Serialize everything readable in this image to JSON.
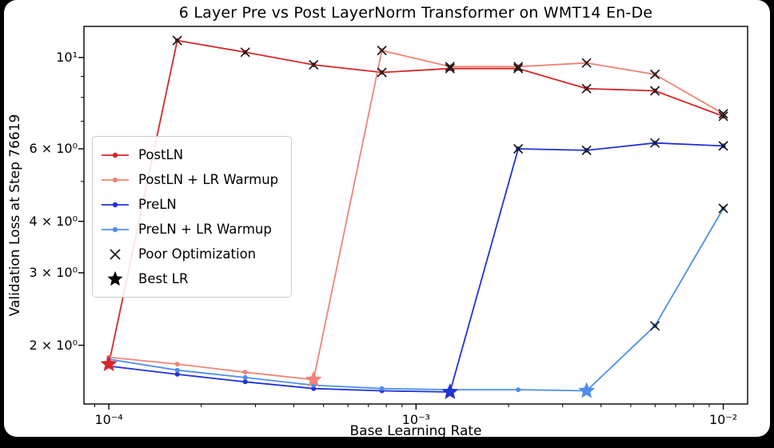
{
  "frame": {
    "background_color": "#000000",
    "card_color": "#ffffff"
  },
  "chart_data": {
    "type": "line",
    "title": "6 Layer Pre vs Post LayerNorm Transformer on WMT14 En-De",
    "xlabel": "Base Learning Rate",
    "ylabel": "Validation Loss at Step 76619",
    "x_scale": "log",
    "y_scale": "log",
    "grid": false,
    "legend_position": "center-left",
    "xlim": [
      8.3e-05,
      0.012
    ],
    "ylim": [
      1.44,
      11.9
    ],
    "x": [
      0.0001,
      0.000167,
      0.000278,
      0.000464,
      0.000774,
      0.00129,
      0.00215,
      0.00359,
      0.00599,
      0.01
    ],
    "x_ticks": [
      {
        "value": 0.0001,
        "label": "10⁻⁴"
      },
      {
        "value": 0.001,
        "label": "10⁻³"
      },
      {
        "value": 0.01,
        "label": "10⁻²"
      }
    ],
    "y_ticks": [
      {
        "value": 10,
        "label": "10¹"
      },
      {
        "value": 6,
        "label": "6 × 10⁰"
      },
      {
        "value": 4,
        "label": "4 × 10⁰"
      },
      {
        "value": 3,
        "label": "3 × 10⁰"
      },
      {
        "value": 2,
        "label": "2 × 10⁰"
      }
    ],
    "y_minor_ticks": [
      5,
      7,
      8,
      9
    ],
    "series": [
      {
        "name": "PostLN",
        "color": "#d62728",
        "values": [
          1.8,
          11.0,
          10.3,
          9.6,
          9.2,
          9.4,
          9.4,
          8.4,
          8.3,
          7.2
        ],
        "poor_optimization_idx": [
          1,
          2,
          3,
          4,
          5,
          6,
          7,
          8,
          9
        ],
        "best_lr_idx": 0
      },
      {
        "name": "PostLN + LR Warmup",
        "color": "#ef8476",
        "values": [
          1.87,
          1.8,
          1.72,
          1.65,
          10.4,
          9.5,
          9.5,
          9.7,
          9.1,
          7.3
        ],
        "poor_optimization_idx": [
          4,
          5,
          6,
          7,
          8,
          9
        ],
        "best_lr_idx": 3
      },
      {
        "name": "PreLN",
        "color": "#2132d6",
        "values": [
          1.78,
          1.7,
          1.63,
          1.57,
          1.55,
          1.54,
          6.0,
          5.95,
          6.2,
          6.1
        ],
        "poor_optimization_idx": [
          6,
          7,
          8,
          9
        ],
        "best_lr_idx": 5
      },
      {
        "name": "PreLN + LR Warmup",
        "color": "#4d8fea",
        "values": [
          1.85,
          1.74,
          1.67,
          1.6,
          1.57,
          1.56,
          1.56,
          1.55,
          2.23,
          4.3
        ],
        "poor_optimization_idx": [
          8,
          9
        ],
        "best_lr_idx": 7
      }
    ],
    "marker_legend": [
      {
        "name": "Poor Optimization",
        "marker": "x",
        "color": "#1a1a1a"
      },
      {
        "name": "Best LR",
        "marker": "star",
        "color": "#000000"
      }
    ]
  }
}
